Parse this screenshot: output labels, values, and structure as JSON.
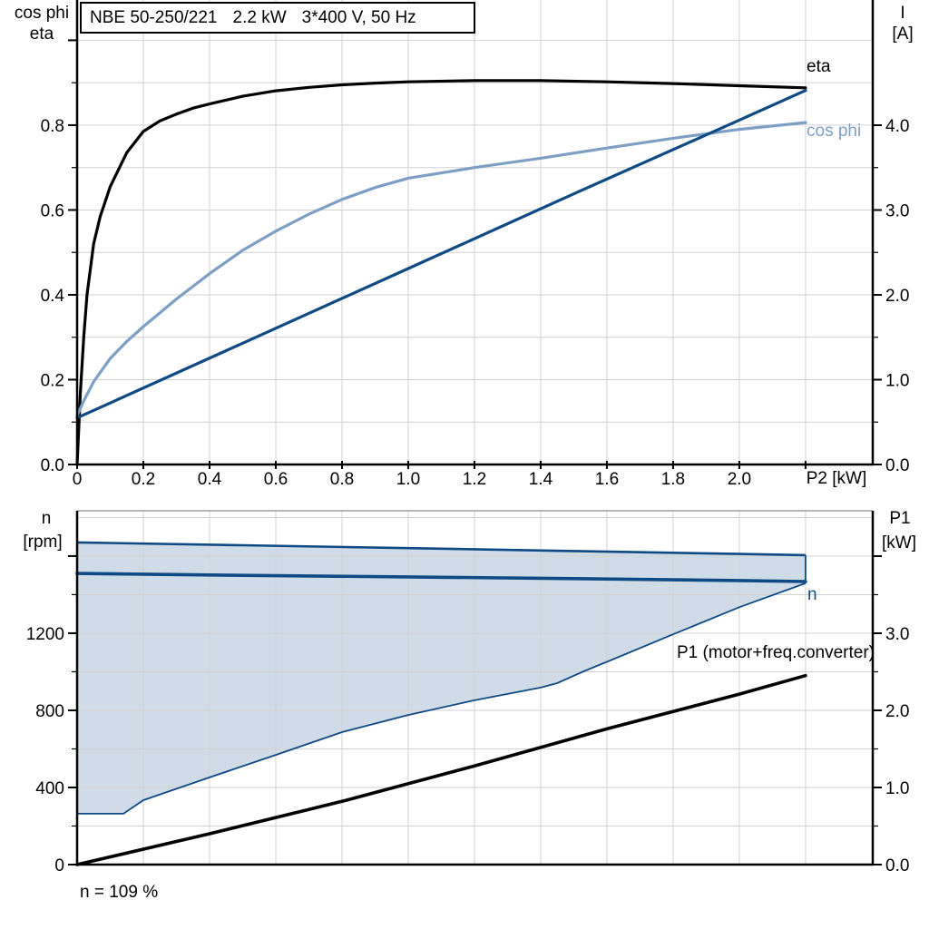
{
  "title_box": {
    "parts": [
      "NBE 50-250/221",
      "2.2 kW",
      "3*400 V, 50 Hz"
    ]
  },
  "colors": {
    "black": "#000000",
    "cos_phi": "#7e9fc5",
    "dark_blue": "#0f4a84",
    "band_fill": "#cfdce8",
    "grid": "#d2d2d2",
    "frame": "#9d9d9d"
  },
  "chart_data": [
    {
      "id": "top",
      "type": "line",
      "title": "NBE 50-250/221  2.2 kW  3*400 V, 50 Hz",
      "x_axis": {
        "title": "P2 [kW]",
        "min": 0,
        "max": 2.403,
        "major_step": 0.2,
        "grid_step": 0.2,
        "tick_labels": [
          "0",
          "0.2",
          "0.4",
          "0.6",
          "0.8",
          "1.0",
          "1.2",
          "1.4",
          "1.6",
          "1.8",
          "2.0"
        ]
      },
      "y_left": {
        "title_lines": [
          "cos phi",
          "eta"
        ],
        "min": 0,
        "max": 1.095,
        "major_step": 0.2,
        "minor_step": 0.1,
        "grid_step": 0.1,
        "tick_labels": [
          "0.0",
          "0.2",
          "0.4",
          "0.6",
          "0.8",
          ""
        ]
      },
      "y_right": {
        "title_lines": [
          "I",
          "[A]"
        ],
        "min": 0,
        "max": 5.476,
        "major_step": 1.0,
        "minor_step": 0.5,
        "tick_labels": [
          "0.0",
          "1.0",
          "2.0",
          "3.0",
          "4.0"
        ]
      },
      "series": [
        {
          "name": "eta",
          "axis": "left",
          "color": "black",
          "width": 3.2,
          "points": [
            [
              0,
              0
            ],
            [
              0.01,
              0.17
            ],
            [
              0.02,
              0.3
            ],
            [
              0.03,
              0.4
            ],
            [
              0.05,
              0.52
            ],
            [
              0.07,
              0.585
            ],
            [
              0.1,
              0.655
            ],
            [
              0.15,
              0.735
            ],
            [
              0.2,
              0.785
            ],
            [
              0.25,
              0.81
            ],
            [
              0.3,
              0.826
            ],
            [
              0.35,
              0.84
            ],
            [
              0.4,
              0.85
            ],
            [
              0.5,
              0.868
            ],
            [
              0.6,
              0.881
            ],
            [
              0.7,
              0.889
            ],
            [
              0.8,
              0.895
            ],
            [
              0.9,
              0.899
            ],
            [
              1.0,
              0.902
            ],
            [
              1.2,
              0.905
            ],
            [
              1.4,
              0.905
            ],
            [
              1.6,
              0.902
            ],
            [
              1.8,
              0.898
            ],
            [
              2.0,
              0.893
            ],
            [
              2.2,
              0.888
            ]
          ]
        },
        {
          "name": "cos phi",
          "axis": "left",
          "color": "cos_phi",
          "width": 3.2,
          "points": [
            [
              0,
              0.115
            ],
            [
              0.02,
              0.15
            ],
            [
              0.05,
              0.195
            ],
            [
              0.1,
              0.25
            ],
            [
              0.15,
              0.29
            ],
            [
              0.2,
              0.325
            ],
            [
              0.3,
              0.39
            ],
            [
              0.4,
              0.45
            ],
            [
              0.5,
              0.505
            ],
            [
              0.6,
              0.55
            ],
            [
              0.7,
              0.59
            ],
            [
              0.8,
              0.625
            ],
            [
              0.9,
              0.653
            ],
            [
              1.0,
              0.675
            ],
            [
              1.2,
              0.7
            ],
            [
              1.4,
              0.722
            ],
            [
              1.6,
              0.746
            ],
            [
              1.8,
              0.769
            ],
            [
              2.0,
              0.79
            ],
            [
              2.2,
              0.806
            ]
          ]
        },
        {
          "name": "I",
          "axis": "right",
          "color": "dark_blue",
          "width": 3.2,
          "points": [
            [
              0,
              0.55
            ],
            [
              0.5,
              1.43
            ],
            [
              1.0,
              2.31
            ],
            [
              1.5,
              3.19
            ],
            [
              2.0,
              4.06
            ],
            [
              2.2,
              4.41
            ]
          ]
        }
      ]
    },
    {
      "id": "bottom",
      "type": "line",
      "frame_top": true,
      "annotation": "n = 109 %",
      "x_axis": {
        "title": "",
        "min": 0,
        "max": 2.403,
        "major_step": 0.2,
        "grid_step": 0.2,
        "tick_labels": []
      },
      "y_left": {
        "title_lines": [
          "n",
          "[rpm]"
        ],
        "min": 0,
        "max": 1835,
        "major_step": 400,
        "minor_step": 200,
        "grid_step": 200,
        "tick_labels": [
          "0",
          "400",
          "800",
          "1200",
          ""
        ]
      },
      "y_right": {
        "title_lines": [
          "P1",
          "[kW]"
        ],
        "min": 0,
        "max": 4.588,
        "major_step": 1.0,
        "minor_step": 0.5,
        "tick_labels": [
          "0.0",
          "1.0",
          "2.0",
          "3.0",
          ""
        ]
      },
      "band": {
        "name": "speed-operating-range",
        "fill": "band_fill",
        "edge": "dark_blue",
        "top_points": [
          [
            0,
            1671
          ],
          [
            0.5,
            1656
          ],
          [
            1.0,
            1641
          ],
          [
            1.5,
            1626
          ],
          [
            2.0,
            1611
          ],
          [
            2.2,
            1605
          ]
        ],
        "bottom_points": [
          [
            0,
            264
          ],
          [
            0.14,
            264
          ],
          [
            0.2,
            334
          ],
          [
            0.4,
            452
          ],
          [
            0.6,
            569
          ],
          [
            0.8,
            687
          ],
          [
            1.0,
            776
          ],
          [
            1.2,
            852
          ],
          [
            1.4,
            918
          ],
          [
            1.45,
            941
          ],
          [
            1.53,
            1002
          ],
          [
            1.63,
            1073
          ],
          [
            1.8,
            1194
          ],
          [
            2.0,
            1335
          ],
          [
            2.2,
            1459
          ]
        ]
      },
      "series": [
        {
          "name": "n",
          "axis": "left",
          "color": "dark_blue",
          "width": 3.6,
          "points": [
            [
              0,
              1510
            ],
            [
              0.5,
              1500
            ],
            [
              1.0,
              1492
            ],
            [
              1.5,
              1483
            ],
            [
              2.0,
              1473
            ],
            [
              2.2,
              1468
            ]
          ]
        },
        {
          "name": "P1 (motor+freq.converter)",
          "axis": "right",
          "color": "black",
          "width": 3.6,
          "points": [
            [
              0,
              0.0
            ],
            [
              0.4,
              0.4
            ],
            [
              0.8,
              0.82
            ],
            [
              1.2,
              1.28
            ],
            [
              1.6,
              1.76
            ],
            [
              2.0,
              2.21
            ],
            [
              2.2,
              2.45
            ]
          ]
        }
      ]
    }
  ]
}
